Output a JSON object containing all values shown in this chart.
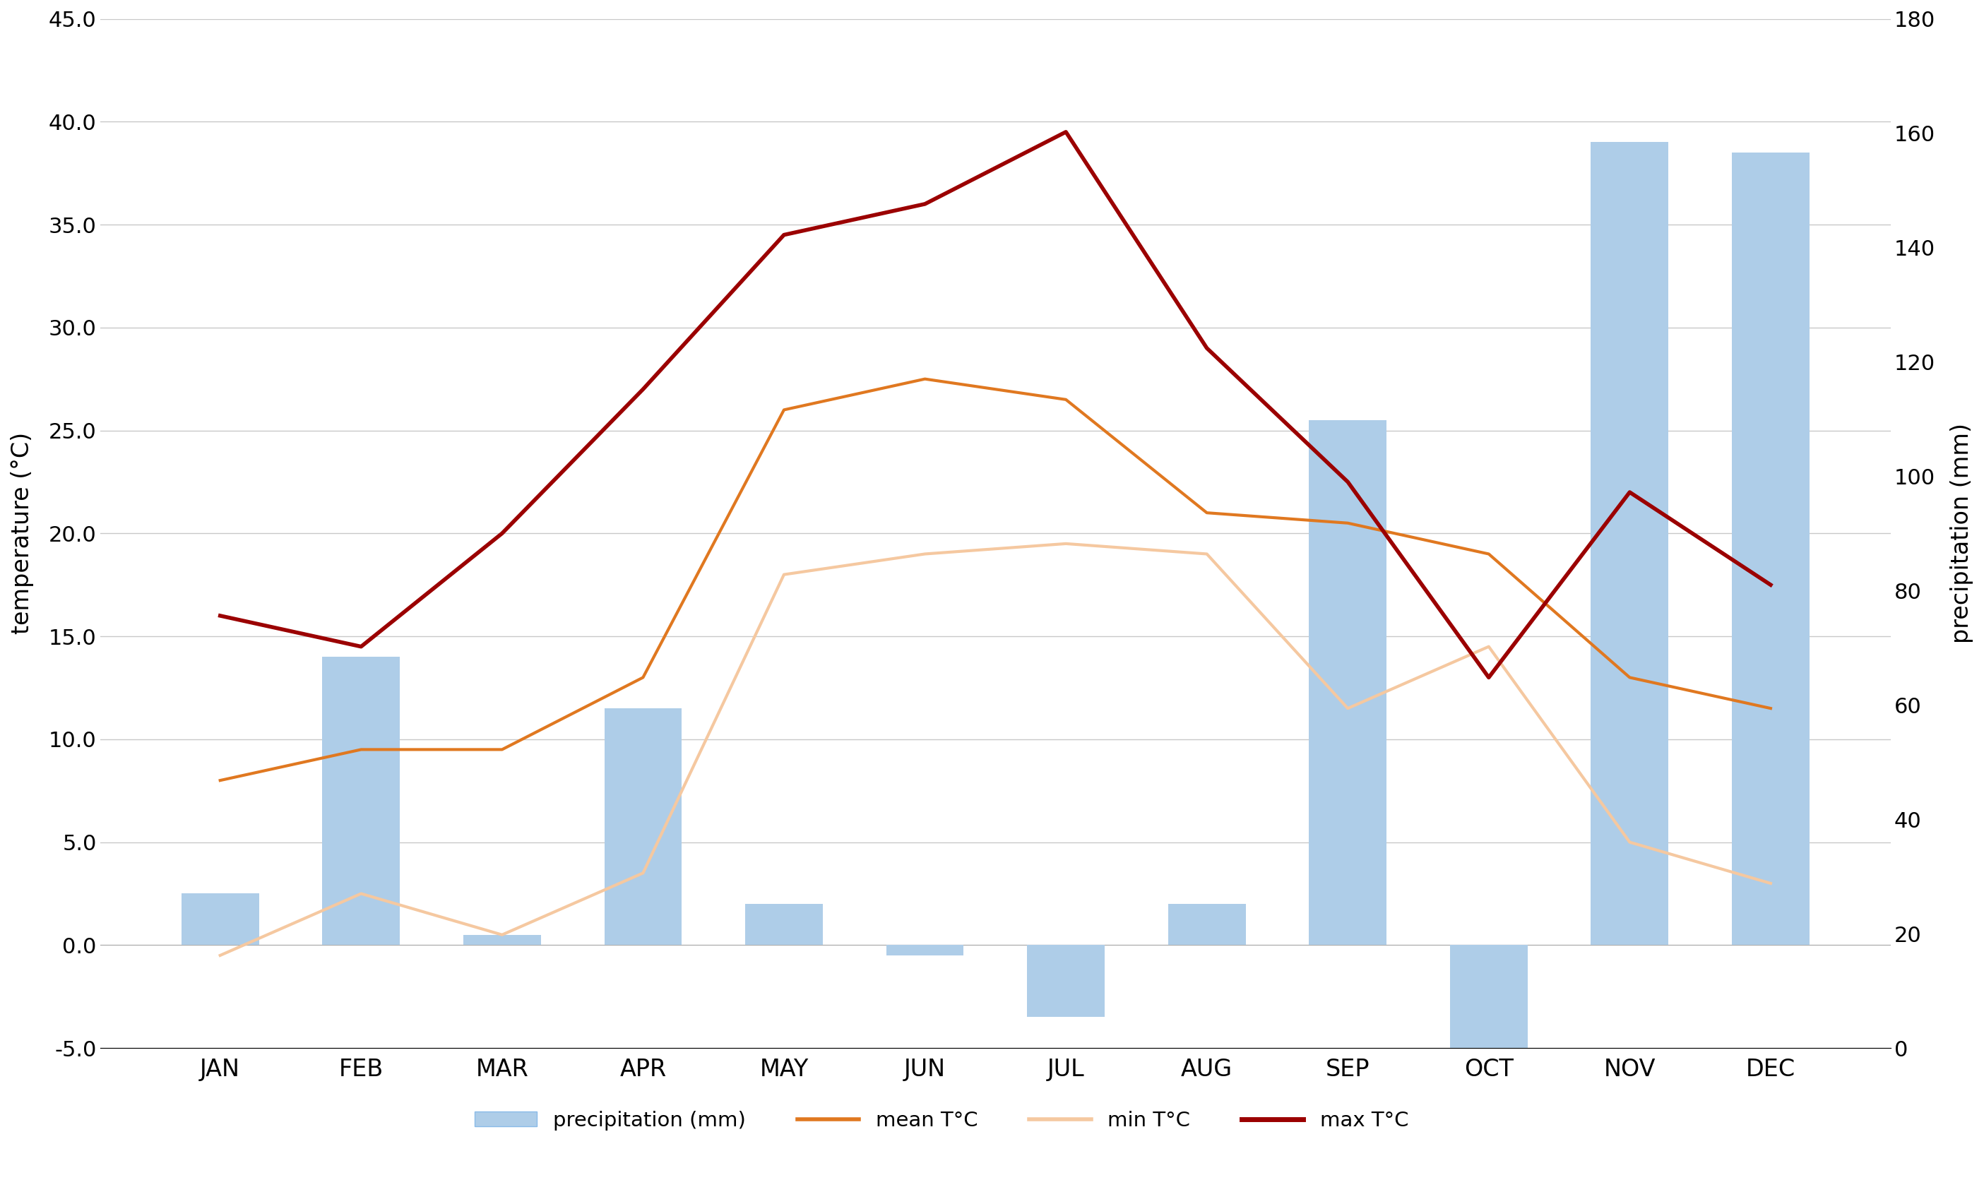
{
  "months": [
    "JAN",
    "FEB",
    "MAR",
    "APR",
    "MAY",
    "JUN",
    "JUL",
    "AUG",
    "SEP",
    "OCT",
    "NOV",
    "DEC"
  ],
  "bar_vals": [
    2.5,
    14.0,
    0.5,
    11.5,
    2.0,
    -0.5,
    -3.5,
    2.0,
    25.5,
    -5.0,
    39.0,
    38.5
  ],
  "mean_T": [
    8.0,
    9.5,
    9.5,
    13.0,
    26.0,
    27.5,
    26.5,
    21.0,
    20.5,
    19.0,
    13.0,
    11.5
  ],
  "min_T": [
    -0.5,
    2.5,
    0.5,
    3.5,
    18.0,
    19.0,
    19.5,
    19.0,
    11.5,
    14.5,
    5.0,
    3.0
  ],
  "max_T": [
    16.0,
    14.5,
    20.0,
    27.0,
    34.5,
    36.0,
    39.5,
    29.0,
    22.5,
    13.0,
    22.0,
    17.5
  ],
  "bar_color": "#aecde8",
  "mean_color": "#e07820",
  "min_color": "#f5c8a0",
  "max_color": "#9b0000",
  "ylabel_left": "temperature (°C)",
  "ylabel_right": "precipitation (mm)",
  "ylim_left": [
    -5.0,
    45.0
  ],
  "ylim_right": [
    0,
    180
  ],
  "yticks_left": [
    -5.0,
    0.0,
    5.0,
    10.0,
    15.0,
    20.0,
    25.0,
    30.0,
    35.0,
    40.0,
    45.0
  ],
  "yticks_right": [
    0,
    20,
    40,
    60,
    80,
    100,
    120,
    140,
    160,
    180
  ],
  "grid_color": "#c8c8c8",
  "label_precipitation": "precipitation (mm)",
  "label_mean": "mean T°C",
  "label_min": "min T°C",
  "label_max": "max T°C",
  "tick_fontsize": 22,
  "label_fontsize": 24,
  "legend_fontsize": 21,
  "linewidth_mean": 3.0,
  "linewidth_min": 3.0,
  "linewidth_max": 4.0,
  "bar_width": 0.55
}
